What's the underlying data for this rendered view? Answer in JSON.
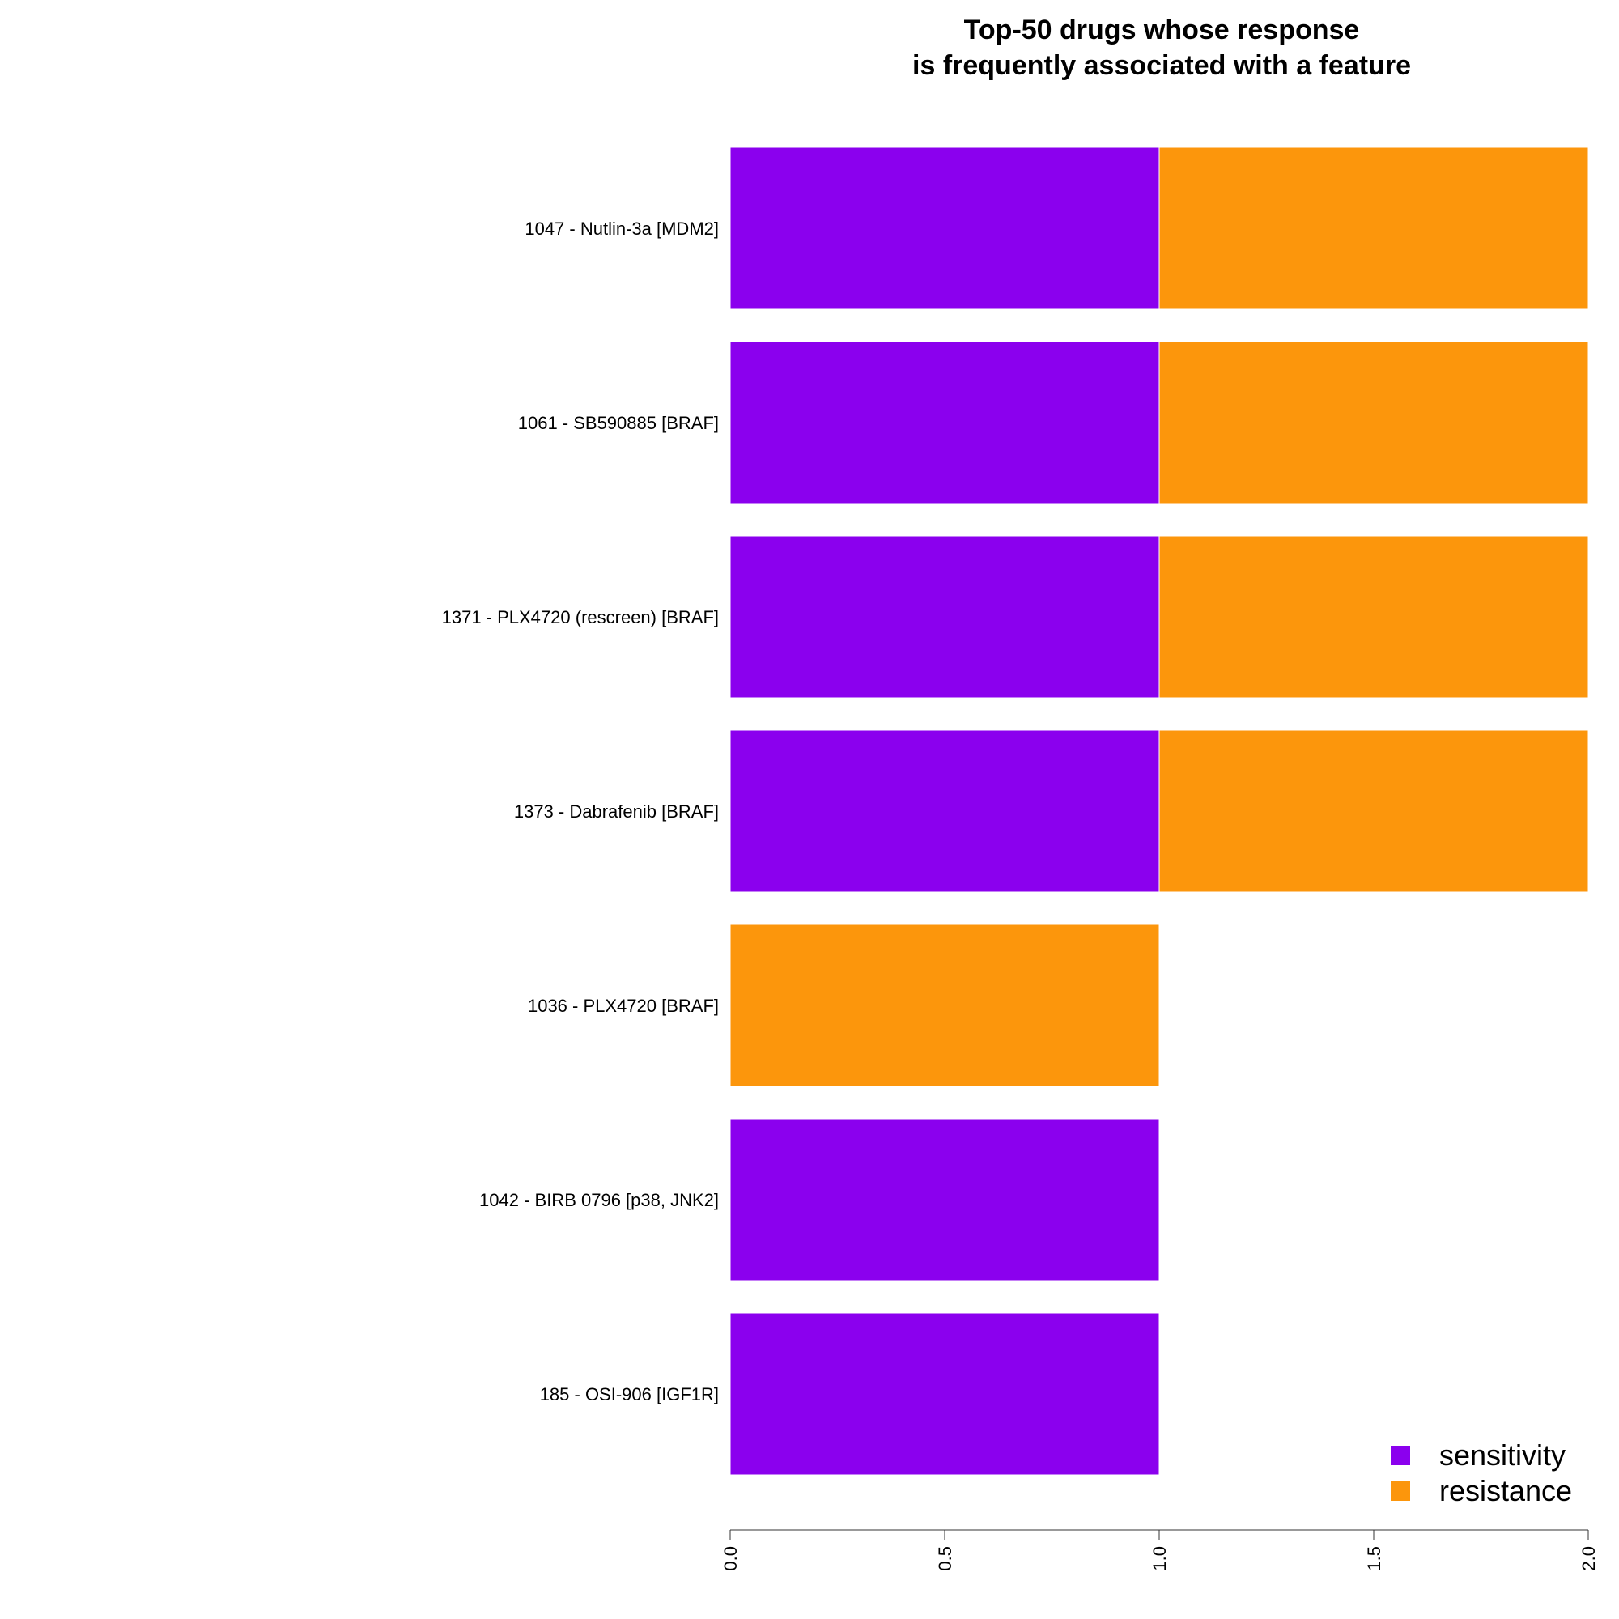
{
  "chart_data": {
    "type": "bar",
    "orientation": "horizontal",
    "stacked": true,
    "title_lines": [
      "Top-50 drugs whose response",
      "is frequently associated with a feature"
    ],
    "xlabel": "",
    "ylabel": "",
    "xlim": [
      0,
      2
    ],
    "x_ticks": [
      0,
      0.5,
      1,
      1.5,
      2
    ],
    "x_tick_labels": [
      "0.0",
      "0.5",
      "1.0",
      "1.5",
      "2.0"
    ],
    "grid": false,
    "legend_position": "bottom-right",
    "categories": [
      "1047 - Nutlin-3a [MDM2]",
      "1061 - SB590885 [BRAF]",
      "1371 - PLX4720 (rescreen) [BRAF]",
      "1373 - Dabrafenib [BRAF]",
      "1036 - PLX4720 [BRAF]",
      "1042 - BIRB 0796 [p38, JNK2]",
      "185 - OSI-906 [IGF1R]"
    ],
    "series": [
      {
        "name": "sensitivity",
        "color": "#8B00EE",
        "values": [
          1,
          1,
          1,
          1,
          0,
          1,
          1
        ]
      },
      {
        "name": "resistance",
        "color": "#FC960C",
        "values": [
          1,
          1,
          1,
          1,
          1,
          0,
          0
        ]
      }
    ]
  }
}
